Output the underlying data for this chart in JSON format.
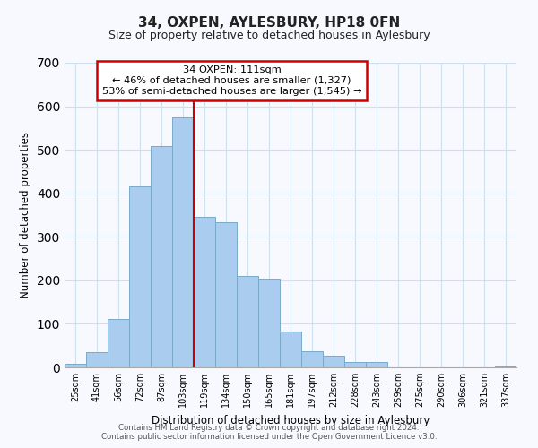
{
  "title": "34, OXPEN, AYLESBURY, HP18 0FN",
  "subtitle": "Size of property relative to detached houses in Aylesbury",
  "xlabel": "Distribution of detached houses by size in Aylesbury",
  "ylabel": "Number of detached properties",
  "bar_labels": [
    "25sqm",
    "41sqm",
    "56sqm",
    "72sqm",
    "87sqm",
    "103sqm",
    "119sqm",
    "134sqm",
    "150sqm",
    "165sqm",
    "181sqm",
    "197sqm",
    "212sqm",
    "228sqm",
    "243sqm",
    "259sqm",
    "275sqm",
    "290sqm",
    "306sqm",
    "321sqm",
    "337sqm"
  ],
  "bar_values": [
    8,
    35,
    112,
    415,
    508,
    575,
    345,
    333,
    210,
    203,
    82,
    37,
    26,
    13,
    13,
    0,
    0,
    0,
    0,
    0,
    3
  ],
  "bar_color": "#aaccee",
  "bar_edge_color": "#7aaac8",
  "property_line_x": 6.0,
  "annotation_label": "34 OXPEN: 111sqm",
  "annotation_line1": "← 46% of detached houses are smaller (1,327)",
  "annotation_line2": "53% of semi-detached houses are larger (1,545) →",
  "annotation_box_color": "#ffffff",
  "annotation_box_edge_color": "#cc0000",
  "line_color": "#cc0000",
  "ylim": [
    0,
    700
  ],
  "yticks": [
    0,
    100,
    200,
    300,
    400,
    500,
    600,
    700
  ],
  "footer_line1": "Contains HM Land Registry data © Crown copyright and database right 2024.",
  "footer_line2": "Contains public sector information licensed under the Open Government Licence v3.0.",
  "background_color": "#f8f8ff",
  "grid_color": "#cce0ee"
}
